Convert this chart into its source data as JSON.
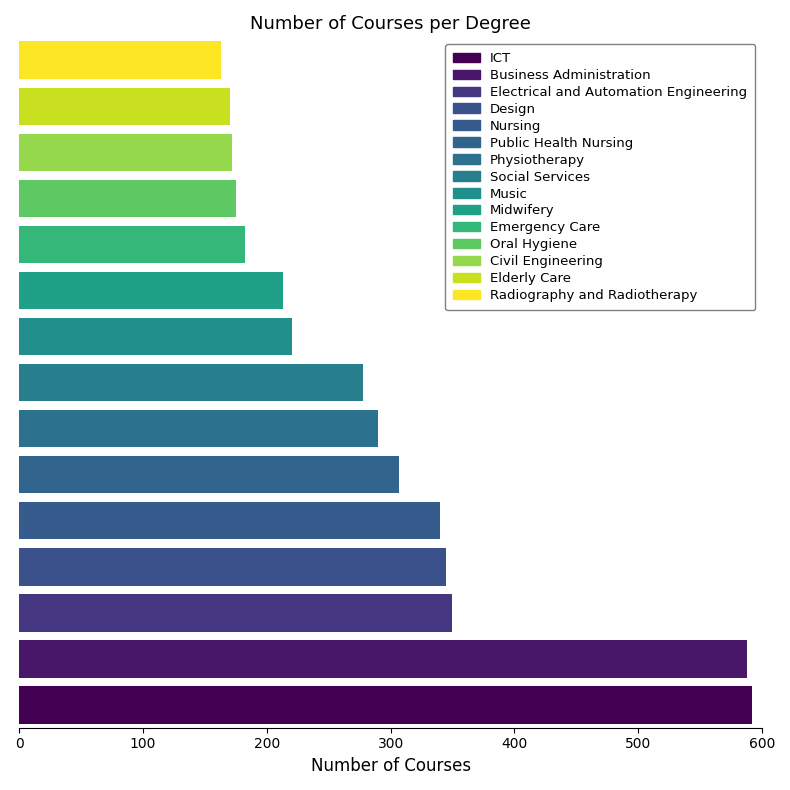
{
  "title": "Number of Courses per Degree",
  "xlabel": "Number of Courses",
  "categories_bottom_to_top": [
    "ICT",
    "Business Administration",
    "Electrical and Automation Engineering",
    "Design",
    "Nursing",
    "Public Health Nursing",
    "Physiotherapy",
    "Social Services",
    "Music",
    "Midwifery",
    "Emergency Care",
    "Oral Hygiene",
    "Civil Engineering",
    "Elderly Care",
    "Radiography and Radiotherapy"
  ],
  "values_bottom_to_top": [
    592,
    588,
    350,
    345,
    340,
    307,
    290,
    278,
    220,
    213,
    182,
    175,
    172,
    170,
    163
  ],
  "colors_bottom_to_top": [
    "#440154",
    "#481769",
    "#453781",
    "#3b518b",
    "#365c8d",
    "#31658e",
    "#2c728e",
    "#277f8e",
    "#21908d",
    "#1fa188",
    "#35b779",
    "#5ec962",
    "#96d84b",
    "#c8e020",
    "#fde725"
  ],
  "legend_labels": [
    "ICT",
    "Business Administration",
    "Electrical and Automation Engineering",
    "Design",
    "Nursing",
    "Public Health Nursing",
    "Physiotherapy",
    "Social Services",
    "Music",
    "Midwifery",
    "Emergency Care",
    "Oral Hygiene",
    "Civil Engineering",
    "Elderly Care",
    "Radiography and Radiotherapy"
  ],
  "legend_colors": [
    "#440154",
    "#481769",
    "#453781",
    "#3b518b",
    "#365c8d",
    "#31658e",
    "#2c728e",
    "#277f8e",
    "#21908d",
    "#1fa188",
    "#35b779",
    "#5ec962",
    "#96d84b",
    "#c8e020",
    "#fde725"
  ],
  "xlim": [
    0,
    600
  ],
  "figsize": [
    7.9,
    7.9
  ],
  "dpi": 100
}
